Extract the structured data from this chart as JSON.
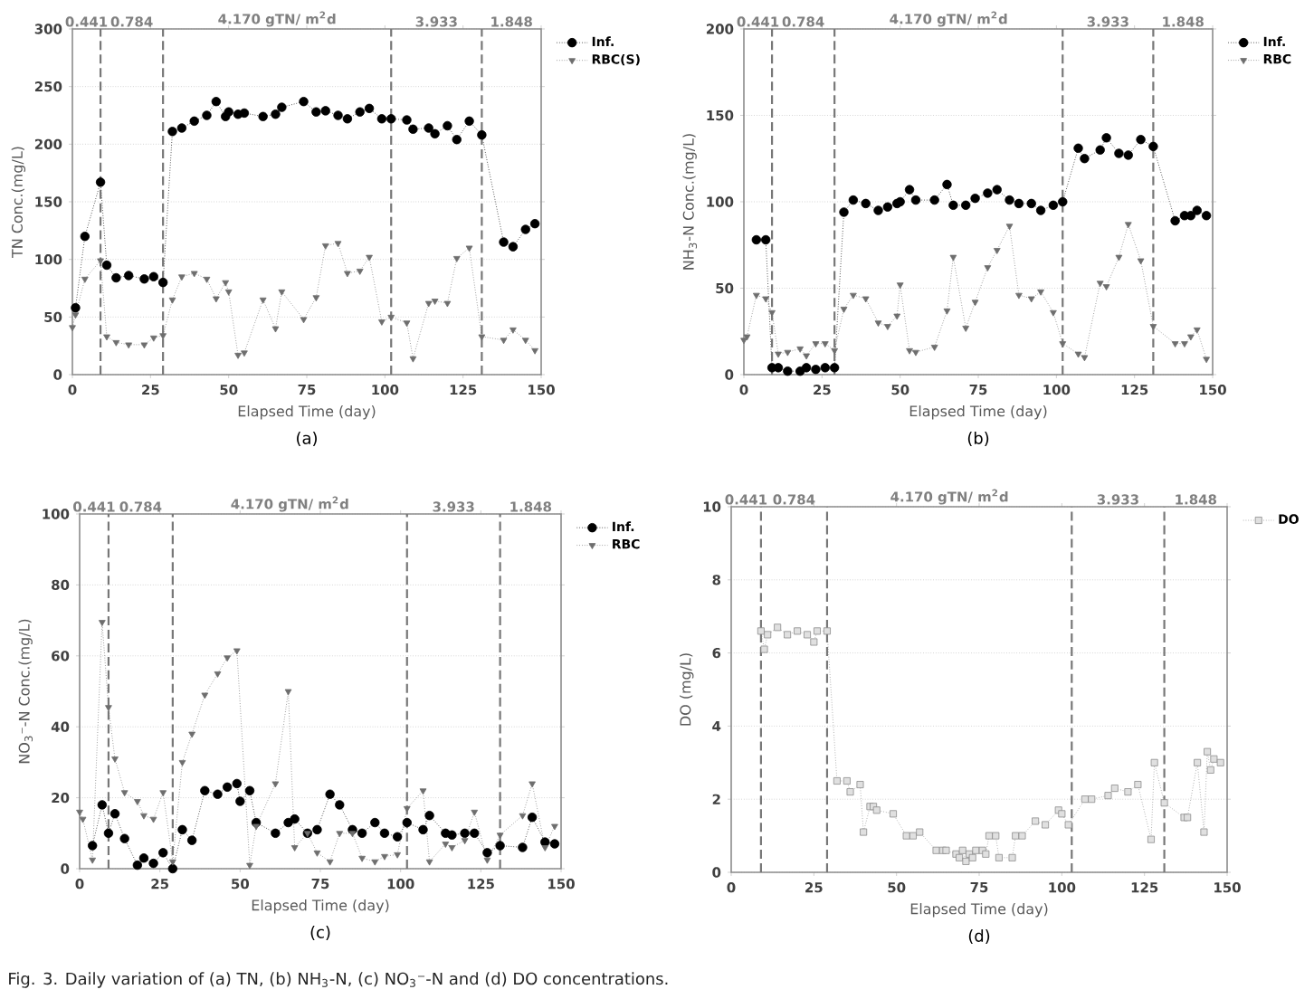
{
  "chart_data": [
    {
      "type": "line",
      "title": "(a)",
      "xlabel": "Elapsed Time (day)",
      "ylabel": "TN Conc.(mg/L)",
      "xlim": [
        0,
        150
      ],
      "xticks": [
        0,
        25,
        50,
        75,
        100,
        125,
        150
      ],
      "ylim": [
        0,
        300
      ],
      "yticks": [
        0,
        50,
        100,
        150,
        200,
        250,
        300
      ],
      "grid": "y",
      "legend": "top right",
      "line_style": "dotted",
      "ref_lines": [
        {
          "axis": "x",
          "value": 9,
          "color": "#777777",
          "line_style": "dashed"
        },
        {
          "axis": "x",
          "value": 29,
          "color": "#777777",
          "line_style": "dashed"
        },
        {
          "axis": "x",
          "value": 102,
          "color": "#777777",
          "line_style": "dashed"
        },
        {
          "axis": "x",
          "value": 131,
          "color": "#777777",
          "line_style": "dashed"
        }
      ],
      "annotations": [
        "0.441",
        "0.784",
        "4.170 gTN/ m$^{2}$d",
        "3.933",
        "1.848"
      ],
      "series": [
        {
          "name": "Inf.",
          "color": "#000000",
          "marker": "circle",
          "x": [
            1,
            4,
            9,
            11,
            14,
            18,
            23,
            26,
            29,
            32,
            35,
            39,
            43,
            46,
            49,
            50,
            53,
            55,
            61,
            65,
            67,
            74,
            78,
            81,
            85,
            88,
            92,
            95,
            99,
            102,
            107,
            109,
            114,
            116,
            120,
            123,
            127,
            131,
            138,
            141,
            145,
            148
          ],
          "values": [
            58,
            120,
            167,
            95,
            84,
            86,
            83,
            85,
            80,
            211,
            214,
            220,
            225,
            237,
            224,
            228,
            226,
            227,
            224,
            226,
            232,
            237,
            228,
            229,
            225,
            222,
            228,
            231,
            222,
            222,
            221,
            213,
            214,
            209,
            216,
            204,
            220,
            208,
            115,
            111,
            126,
            131
          ]
        },
        {
          "name": "RBC(S)",
          "color": "#6e6e6e",
          "marker": "triangle",
          "x": [
            0,
            1,
            4,
            9,
            11,
            14,
            18,
            23,
            26,
            29,
            32,
            35,
            39,
            43,
            46,
            49,
            50,
            53,
            55,
            61,
            65,
            67,
            74,
            78,
            81,
            85,
            88,
            92,
            95,
            99,
            102,
            107,
            109,
            114,
            116,
            120,
            123,
            127,
            131,
            138,
            141,
            145,
            148
          ],
          "values": [
            41,
            52,
            83,
            99,
            33,
            28,
            26,
            26,
            32,
            34,
            65,
            85,
            88,
            83,
            66,
            80,
            72,
            17,
            19,
            65,
            40,
            72,
            48,
            67,
            112,
            114,
            88,
            90,
            102,
            46,
            50,
            45,
            14,
            62,
            64,
            62,
            101,
            110,
            33,
            30,
            39,
            30,
            21
          ]
        }
      ]
    },
    {
      "type": "line",
      "title": "(b)",
      "xlabel": "Elapsed Time (day)",
      "ylabel": "NH$_{3}$-N Conc.(mg/L)",
      "xlim": [
        0,
        150
      ],
      "xticks": [
        0,
        25,
        50,
        75,
        100,
        125,
        150
      ],
      "ylim": [
        0,
        200
      ],
      "yticks": [
        0,
        50,
        100,
        150,
        200
      ],
      "grid": "y",
      "legend": "top right",
      "line_style": "dotted",
      "ref_lines": [
        {
          "axis": "x",
          "value": 9,
          "color": "#777777",
          "line_style": "dashed"
        },
        {
          "axis": "x",
          "value": 29,
          "color": "#777777",
          "line_style": "dashed"
        },
        {
          "axis": "x",
          "value": 102,
          "color": "#777777",
          "line_style": "dashed"
        },
        {
          "axis": "x",
          "value": 131,
          "color": "#777777",
          "line_style": "dashed"
        }
      ],
      "annotations": [
        "0.441",
        "0.784",
        "4.170 gTN/ m$^{2}$d",
        "3.933",
        "1.848"
      ],
      "series": [
        {
          "name": "Inf.",
          "color": "#000000",
          "marker": "circle",
          "x": [
            4,
            7,
            9,
            11,
            14,
            18,
            20,
            23,
            26,
            29,
            32,
            35,
            39,
            43,
            46,
            49,
            50,
            53,
            55,
            61,
            65,
            67,
            71,
            74,
            78,
            81,
            85,
            88,
            92,
            95,
            99,
            102,
            107,
            109,
            114,
            116,
            120,
            123,
            127,
            131,
            138,
            141,
            143,
            145,
            148
          ],
          "values": [
            78,
            78,
            4,
            4,
            2,
            2,
            4,
            3,
            4,
            4,
            94,
            101,
            99,
            95,
            97,
            99,
            100,
            107,
            101,
            101,
            110,
            98,
            98,
            102,
            105,
            107,
            101,
            99,
            99,
            95,
            98,
            100,
            131,
            125,
            130,
            137,
            128,
            127,
            136,
            132,
            89,
            92,
            92,
            95,
            92
          ]
        },
        {
          "name": "RBC",
          "color": "#6e6e6e",
          "marker": "triangle",
          "x": [
            0,
            1,
            4,
            7,
            9,
            11,
            14,
            18,
            20,
            23,
            26,
            29,
            32,
            35,
            39,
            43,
            46,
            49,
            50,
            53,
            55,
            61,
            65,
            67,
            71,
            74,
            78,
            81,
            85,
            88,
            92,
            95,
            99,
            102,
            107,
            109,
            114,
            116,
            120,
            123,
            127,
            131,
            138,
            141,
            143,
            145,
            148
          ],
          "values": [
            20,
            22,
            46,
            44,
            36,
            12,
            13,
            15,
            11,
            18,
            18,
            14,
            38,
            46,
            44,
            30,
            28,
            34,
            52,
            14,
            13,
            16,
            37,
            68,
            27,
            42,
            62,
            72,
            86,
            46,
            44,
            48,
            36,
            18,
            12,
            10,
            53,
            51,
            68,
            87,
            66,
            28,
            18,
            18,
            22,
            26,
            9
          ]
        }
      ]
    },
    {
      "type": "line",
      "title": "(c)",
      "xlabel": "Elapsed Time (day)",
      "ylabel": "NO$_{3}$⁻-N Conc.(mg/L)",
      "xlim": [
        0,
        150
      ],
      "xticks": [
        0,
        25,
        50,
        75,
        100,
        125,
        150
      ],
      "ylim": [
        0,
        100
      ],
      "yticks": [
        0,
        20,
        40,
        60,
        80,
        100
      ],
      "grid": "y",
      "legend": "top right",
      "line_style": "dotted",
      "ref_lines": [
        {
          "axis": "x",
          "value": 9,
          "color": "#777777",
          "line_style": "dashed"
        },
        {
          "axis": "x",
          "value": 29,
          "color": "#777777",
          "line_style": "dashed"
        },
        {
          "axis": "x",
          "value": 102,
          "color": "#777777",
          "line_style": "dashed"
        },
        {
          "axis": "x",
          "value": 131,
          "color": "#777777",
          "line_style": "dashed"
        }
      ],
      "annotations": [
        "0.441",
        "0.784",
        "4.170 gTN/ m$^{2}$d",
        "3.933",
        "1.848"
      ],
      "series": [
        {
          "name": "Inf.",
          "color": "#000000",
          "marker": "circle",
          "x": [
            4,
            7,
            9,
            11,
            14,
            18,
            20,
            23,
            26,
            29,
            32,
            35,
            39,
            43,
            46,
            49,
            50,
            53,
            55,
            61,
            65,
            67,
            71,
            74,
            78,
            81,
            85,
            88,
            92,
            95,
            99,
            102,
            107,
            109,
            114,
            116,
            120,
            123,
            127,
            131,
            138,
            141,
            145,
            148
          ],
          "values": [
            6.5,
            18,
            10,
            15.5,
            8.5,
            1,
            3,
            1.5,
            4.5,
            0,
            11,
            8,
            22,
            21,
            23,
            24,
            19,
            22,
            13,
            10,
            13,
            14,
            10,
            11,
            21,
            18,
            11,
            10,
            13,
            10,
            9,
            13,
            11,
            15,
            10,
            9.5,
            10,
            10,
            4.5,
            6.5,
            6,
            14.5,
            7.5,
            7
          ]
        },
        {
          "name": "RBC",
          "color": "#6e6e6e",
          "marker": "triangle",
          "x": [
            0,
            1,
            4,
            7,
            9,
            11,
            14,
            18,
            20,
            23,
            26,
            29,
            32,
            35,
            39,
            43,
            46,
            49,
            53,
            55,
            61,
            65,
            67,
            71,
            74,
            78,
            81,
            85,
            88,
            92,
            95,
            99,
            102,
            107,
            109,
            114,
            116,
            120,
            123,
            127,
            131,
            138,
            141,
            145,
            148
          ],
          "values": [
            16,
            14,
            2.5,
            69.5,
            45.5,
            31,
            21.5,
            19,
            15,
            14,
            21.5,
            2,
            30,
            38,
            49,
            55,
            59.5,
            61.5,
            1,
            12,
            24,
            50,
            6,
            10,
            4.5,
            2,
            10,
            10,
            3,
            2,
            3.5,
            4,
            17,
            22,
            2,
            7,
            6,
            8,
            16,
            2.5,
            9.5,
            15,
            24,
            6,
            12
          ]
        }
      ]
    },
    {
      "type": "line",
      "title": "(d)",
      "xlabel": "Elapsed Time (day)",
      "ylabel": "DO (mg/L)",
      "xlim": [
        0,
        150
      ],
      "xticks": [
        0,
        25,
        50,
        75,
        100,
        125,
        150
      ],
      "ylim": [
        0,
        10
      ],
      "yticks": [
        0,
        2,
        4,
        6,
        8,
        10
      ],
      "grid": "y",
      "legend": "top right",
      "line_style": "dotted",
      "ref_lines": [
        {
          "axis": "x",
          "value": 9,
          "color": "#777777",
          "line_style": "dashed"
        },
        {
          "axis": "x",
          "value": 29,
          "color": "#777777",
          "line_style": "dashed"
        },
        {
          "axis": "x",
          "value": 103,
          "color": "#777777",
          "line_style": "dashed"
        },
        {
          "axis": "x",
          "value": 131,
          "color": "#777777",
          "line_style": "dashed"
        }
      ],
      "annotations": [
        "0.441",
        "0.784",
        "4.170 gTN/ m$^{2}$d",
        "3.933",
        "1.848",
        "Fig. 3. Daily variation of (a) TN, (b) NH$_{3}$-N, (c) NO$_{3}$⁻-N and (d) DO concentrations."
      ],
      "series": [
        {
          "name": "DO",
          "color": "#8c8c8c",
          "marker": "square",
          "x": [
            9,
            10,
            11,
            14,
            17,
            20,
            23,
            25,
            26,
            29,
            32,
            35,
            36,
            39,
            40,
            42,
            43,
            44,
            49,
            53,
            55,
            57,
            62,
            64,
            65,
            68,
            69,
            70,
            71,
            72,
            73,
            74,
            76,
            77,
            78,
            80,
            81,
            85,
            86,
            88,
            92,
            95,
            99,
            100,
            102,
            107,
            109,
            114,
            116,
            120,
            123,
            127,
            128,
            131,
            137,
            138,
            141,
            143,
            144,
            145,
            146,
            148
          ],
          "values": [
            6.6,
            6.1,
            6.5,
            6.7,
            6.5,
            6.6,
            6.5,
            6.3,
            6.6,
            6.6,
            2.5,
            2.5,
            2.2,
            2.4,
            1.1,
            1.8,
            1.8,
            1.7,
            1.6,
            1.0,
            1.0,
            1.1,
            0.6,
            0.6,
            0.6,
            0.5,
            0.4,
            0.6,
            0.3,
            0.5,
            0.4,
            0.6,
            0.6,
            0.5,
            1.0,
            1.0,
            0.4,
            0.4,
            1.0,
            1.0,
            1.4,
            1.3,
            1.7,
            1.6,
            1.3,
            2.0,
            2.0,
            2.1,
            2.3,
            2.2,
            2.4,
            0.9,
            3.0,
            1.9,
            1.5,
            1.5,
            3.0,
            1.1,
            3.3,
            2.8,
            3.1,
            3.0
          ]
        }
      ]
    }
  ]
}
